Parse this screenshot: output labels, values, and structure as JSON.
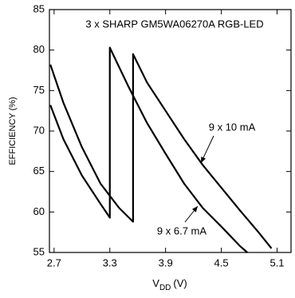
{
  "chart_data": {
    "type": "line",
    "annotation": "3 x SHARP GM5WA06270A RGB-LED",
    "x_label": {
      "main": "V",
      "sub": "DD",
      "unit": "(V)"
    },
    "y_label": "EFFICIENCY (%)",
    "series": [
      {
        "name": "9 x 10 mA",
        "color": "#000000",
        "x": [
          2.66,
          2.8,
          3.0,
          3.2,
          3.4,
          3.55,
          3.55,
          3.7,
          3.9,
          4.1,
          4.3,
          4.5,
          4.7,
          4.9,
          5.04
        ],
        "values": [
          78.2,
          73.5,
          68,
          63.5,
          60.5,
          58.8,
          79.5,
          76,
          72.5,
          69,
          65.8,
          63,
          60.2,
          57.5,
          55.5
        ]
      },
      {
        "name": "9 x 6.7 mA",
        "color": "#000000",
        "x": [
          2.66,
          2.8,
          3.0,
          3.2,
          3.3,
          3.3,
          3.5,
          3.7,
          3.9,
          4.1,
          4.3,
          4.5,
          4.7,
          4.78
        ],
        "values": [
          73.2,
          69,
          64.5,
          61,
          59.3,
          80.3,
          75.5,
          71,
          67.2,
          63.5,
          60.5,
          58.2,
          55.8,
          55
        ]
      }
    ],
    "xlim": [
      2.65,
      5.25
    ],
    "xticks": [
      2.7,
      3.3,
      3.9,
      4.5,
      5.1
    ],
    "ylim": [
      55,
      85
    ],
    "yticks": [
      55,
      60,
      65,
      70,
      75,
      80,
      85
    ],
    "grid": false
  }
}
